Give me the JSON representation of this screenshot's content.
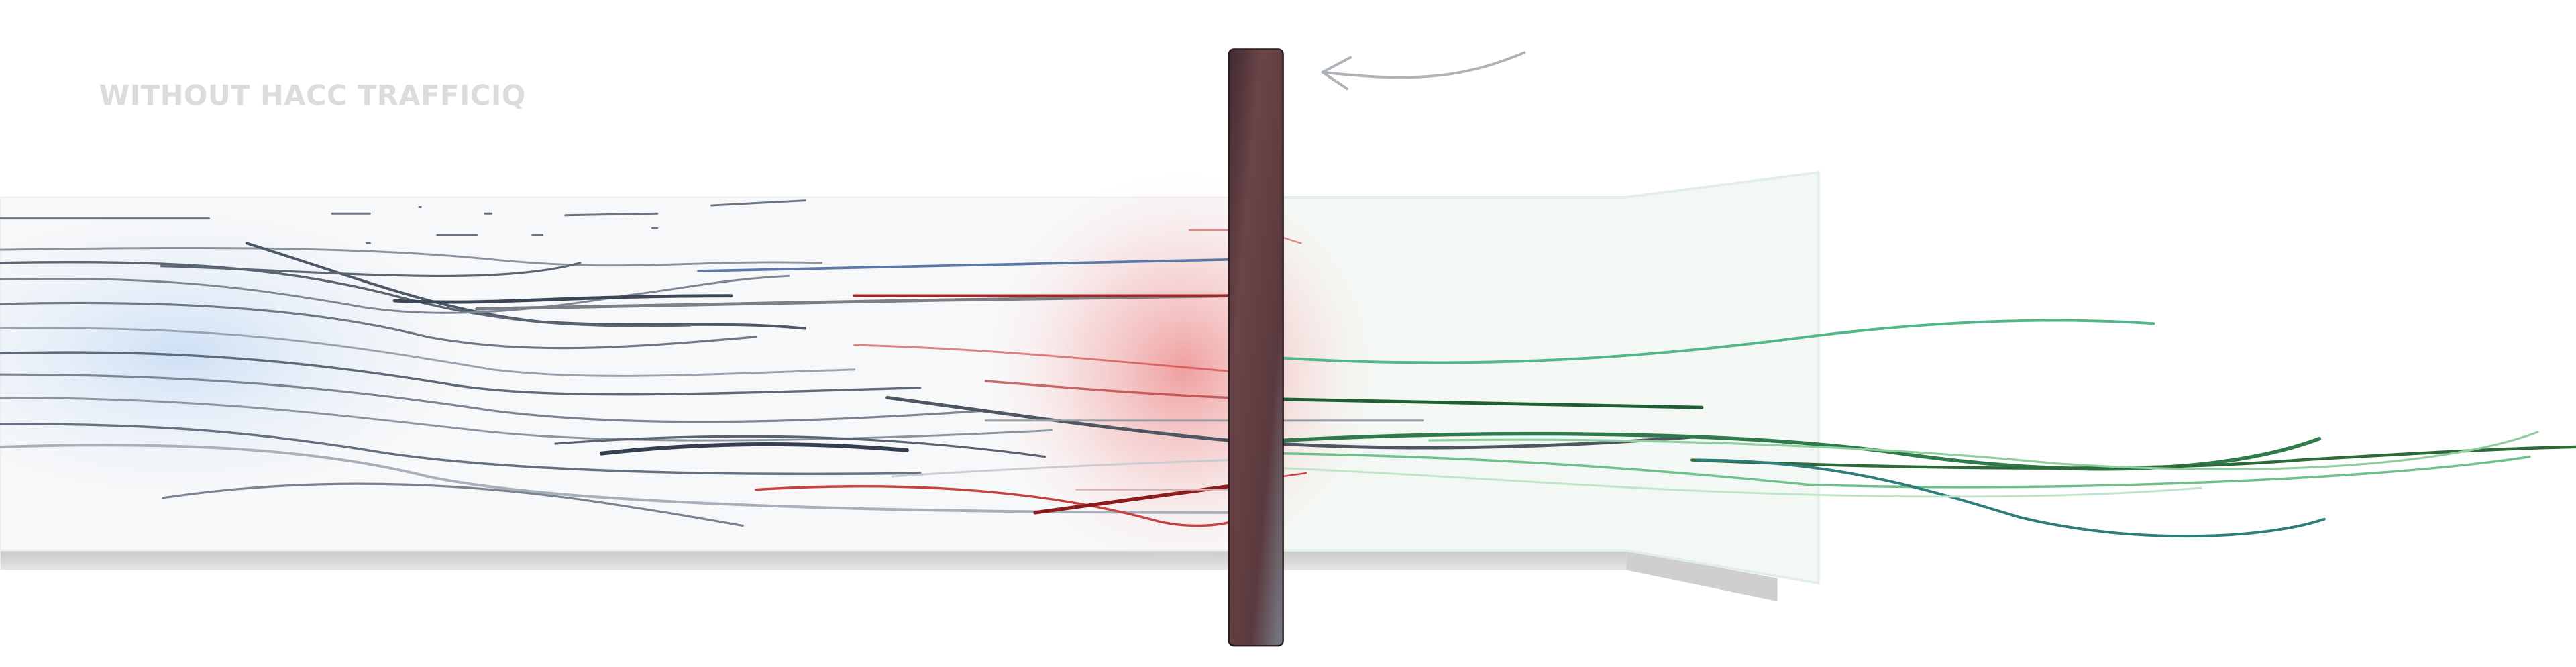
{
  "header": {
    "title": "WITHOUT HACC TRAFFICIQ"
  }
}
